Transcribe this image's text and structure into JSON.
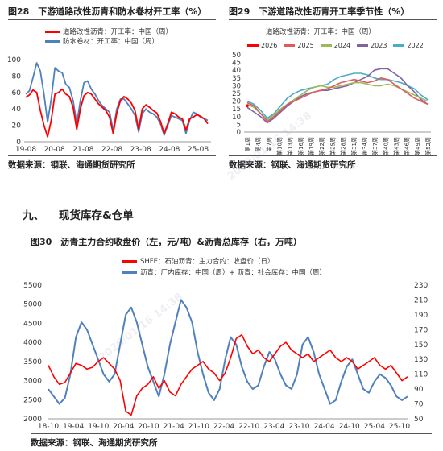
{
  "fig28": {
    "title": "图28　下游道路改性沥青和防水卷材开工率（%）",
    "source": "数据来源：钢联、海通期货研究所",
    "chart_data": {
      "type": "line",
      "x_ticks": [
        "19-08",
        "20-08",
        "21-08",
        "22-08",
        "23-08",
        "24-08",
        "25-08"
      ],
      "y_ticks": [
        0,
        20,
        40,
        60,
        80,
        100
      ],
      "ylim": [
        0,
        100
      ],
      "series": [
        {
          "name": "道路改性沥青：开工率：中国（周）",
          "color": "#ff0000",
          "values": [
            54,
            57,
            63,
            60,
            38,
            20,
            6,
            26,
            58,
            60,
            64,
            58,
            55,
            42,
            15,
            40,
            56,
            60,
            58,
            52,
            46,
            42,
            38,
            30,
            10,
            35,
            50,
            55,
            52,
            47,
            38,
            15,
            40,
            45,
            42,
            38,
            35,
            25,
            10,
            22,
            36,
            34,
            30,
            28,
            14,
            28,
            30,
            33,
            31,
            28,
            22
          ]
        },
        {
          "name": "防水卷材：开工率：中国（周）",
          "color": "#4f81bd",
          "values": [
            58,
            62,
            78,
            96,
            86,
            58,
            24,
            52,
            90,
            86,
            84,
            70,
            66,
            50,
            22,
            50,
            72,
            74,
            64,
            58,
            50,
            44,
            40,
            36,
            14,
            40,
            52,
            52,
            46,
            40,
            32,
            12,
            34,
            40,
            36,
            34,
            30,
            22,
            8,
            20,
            32,
            30,
            28,
            26,
            10,
            26,
            36,
            34,
            30,
            28,
            26
          ]
        }
      ]
    }
  },
  "fig29": {
    "title": "图29　下游道路改性沥青开工率季节性（%）",
    "source": "数据来源：钢联、海通期货研究所",
    "chart_data": {
      "type": "line",
      "x_ticks": [
        "第1周",
        "第4周",
        "第7周",
        "第10周",
        "第13周",
        "第16周",
        "第19周",
        "第22周",
        "第25周",
        "第28周",
        "第31周",
        "第34周",
        "第37周",
        "第40周",
        "第43周",
        "第46周",
        "第49周",
        "第52周"
      ],
      "y_ticks": [
        0,
        5,
        10,
        15,
        20,
        25,
        30,
        35,
        40,
        45,
        50
      ],
      "ylim": [
        0,
        50
      ],
      "series": [
        {
          "name": "2026",
          "color": "#ff0000",
          "values": [
            17
          ]
        },
        {
          "name": "2025",
          "color": "#e05c5c",
          "values": [
            19,
            17,
            12,
            7,
            10,
            14,
            18,
            20,
            22,
            24,
            26,
            27,
            28,
            30,
            32,
            33,
            34,
            33,
            32,
            33,
            35,
            34,
            31,
            28,
            25,
            22,
            20,
            18
          ]
        },
        {
          "name": "2024",
          "color": "#9bbb59",
          "values": [
            18,
            16,
            12,
            8,
            11,
            15,
            18,
            21,
            24,
            27,
            29,
            30,
            29,
            29,
            30,
            31,
            32,
            32,
            31,
            30,
            30,
            31,
            30,
            28,
            26,
            24,
            22,
            20
          ]
        },
        {
          "name": "2023",
          "color": "#8064a2",
          "values": [
            16,
            13,
            10,
            6,
            9,
            13,
            17,
            20,
            23,
            25,
            26,
            27,
            27,
            28,
            29,
            30,
            32,
            34,
            36,
            40,
            41,
            41,
            38,
            35,
            30,
            26,
            21,
            18
          ]
        },
        {
          "name": "2022",
          "color": "#4bacc6",
          "values": [
            20,
            18,
            14,
            9,
            12,
            17,
            22,
            25,
            27,
            28,
            29,
            30,
            31,
            34,
            36,
            37,
            38,
            38,
            37,
            35,
            34,
            34,
            33,
            32,
            30,
            28,
            24,
            21
          ]
        }
      ]
    }
  },
  "section": {
    "number": "九、",
    "title": "现货库存&仓单"
  },
  "fig30": {
    "title": "图30　沥青主力合约收盘价（左，元/吨）&沥青总库存（右，万吨）",
    "source": "数据来源：钢联、海通期货研究所",
    "chart_data": {
      "type": "line",
      "x_ticks": [
        "18-10",
        "19-04",
        "19-10",
        "20-04",
        "20-10",
        "21-04",
        "21-10",
        "22-04",
        "22-10",
        "23-04",
        "23-10",
        "24-04",
        "24-10",
        "25-04",
        "25-10"
      ],
      "y_left_ticks": [
        2000,
        2500,
        3000,
        3500,
        4000,
        4500,
        5000,
        5500
      ],
      "ylim_left": [
        2000,
        5500
      ],
      "y_right_ticks": [
        50,
        70,
        90,
        110,
        130,
        150,
        170,
        190,
        210,
        230
      ],
      "ylim_right": [
        50,
        230
      ],
      "series": [
        {
          "name": "SHFE：石油沥青：主力合约：收盘价（日）",
          "axis": "left",
          "color": "#ff0000",
          "values": [
            3400,
            3100,
            2900,
            2950,
            3200,
            3450,
            3400,
            3300,
            3350,
            3500,
            3600,
            3450,
            3300,
            3000,
            2200,
            2100,
            2600,
            2800,
            2900,
            3100,
            2800,
            3000,
            2700,
            2600,
            2900,
            3100,
            3300,
            3400,
            3500,
            3300,
            3200,
            3000,
            3200,
            3600,
            4100,
            4200,
            3900,
            3700,
            3800,
            3600,
            3500,
            3700,
            3900,
            4000,
            3800,
            3700,
            3600,
            3700,
            3500,
            3600,
            3700,
            3800,
            3600,
            3500,
            3600,
            3500,
            3300,
            3400,
            3500,
            3600,
            3400,
            3300,
            3400,
            3200,
            3000,
            3100
          ]
        },
        {
          "name": "沥青：厂内库存：中国（周）+ 沥青：社会库存：中国（周）",
          "axis": "right",
          "color": "#4f81bd",
          "values": [
            90,
            80,
            70,
            78,
            110,
            160,
            180,
            170,
            150,
            130,
            110,
            100,
            110,
            150,
            190,
            200,
            180,
            150,
            120,
            100,
            80,
            110,
            150,
            180,
            210,
            200,
            180,
            140,
            110,
            85,
            75,
            90,
            130,
            160,
            150,
            120,
            100,
            90,
            95,
            120,
            140,
            130,
            110,
            95,
            90,
            110,
            150,
            160,
            140,
            110,
            90,
            70,
            75,
            100,
            120,
            130,
            110,
            90,
            85,
            100,
            110,
            105,
            95,
            80,
            75,
            80
          ]
        }
      ]
    }
  }
}
